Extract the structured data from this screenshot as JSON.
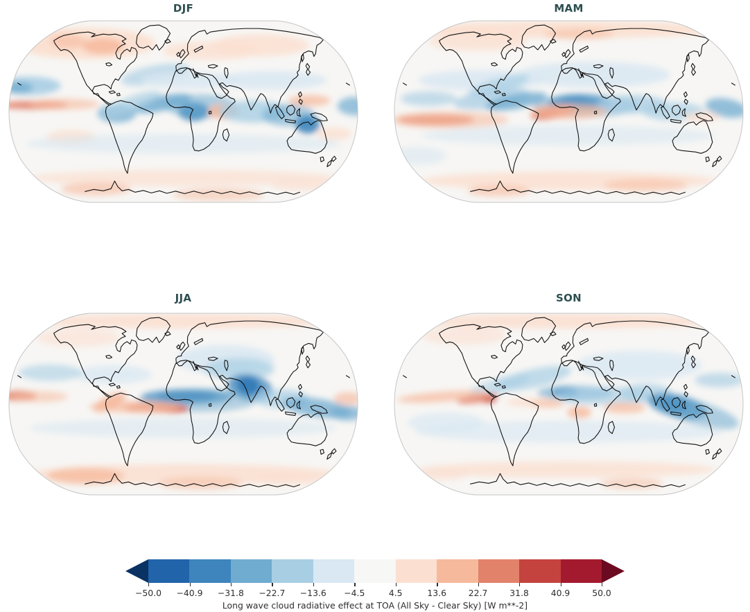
{
  "figure": {
    "panels": [
      {
        "id": "DJF",
        "title": "DJF"
      },
      {
        "id": "MAM",
        "title": "MAM"
      },
      {
        "id": "JJA",
        "title": "JJA"
      },
      {
        "id": "SON",
        "title": "SON"
      }
    ],
    "title_color": "#2d4f51"
  },
  "colorbar": {
    "label": "Long wave cloud radiative effect at TOA (All Sky - Clear Sky) [W m**-2]",
    "tick_labels": [
      "−50.0",
      "−40.9",
      "−31.8",
      "−22.7",
      "−13.6",
      "−4.5",
      "4.5",
      "13.6",
      "22.7",
      "31.8",
      "40.9",
      "50.0"
    ],
    "segment_colors": [
      "#2264aa",
      "#3d85bc",
      "#70abd0",
      "#a8cee4",
      "#d9e8f2",
      "#f7f7f6",
      "#fbe0d1",
      "#f6b99c",
      "#e2826b",
      "#c4433f",
      "#a31a2e"
    ],
    "under_arrow_color": "#0a3263",
    "over_arrow_color": "#6b0a20"
  },
  "chart_data": {
    "type": "heatmap",
    "title": "",
    "variable": "Long wave cloud radiative effect at TOA (All Sky - Clear Sky)",
    "units": "W m**-2",
    "projection": "Robinson world map, one panel per season",
    "panels": [
      "DJF",
      "MAM",
      "JJA",
      "SON"
    ],
    "levels": [
      -50.0,
      -40.9,
      -31.8,
      -22.7,
      -13.6,
      -4.5,
      4.5,
      13.6,
      22.7,
      31.8,
      40.9,
      50.0
    ],
    "colorbar_extend": "both",
    "legend_position": "bottom",
    "style": {
      "map_background": "#f7f6f4",
      "coastline_color": "#111111",
      "outline_color": "#c4c4c4"
    },
    "palette": {
      "b1": "#d9e8f2",
      "b2": "#a8cee4",
      "b3": "#70abd0",
      "b4": "#3d85bc",
      "b5": "#2264aa",
      "r1": "#fbe0d1",
      "r2": "#f6b99c",
      "r3": "#e2826b",
      "r4": "#c4433f"
    },
    "features": {
      "DJF": [
        [
          0.22,
          0.13,
          0.2,
          0.085,
          0,
          "r1",
          0.95
        ],
        [
          0.27,
          0.145,
          0.06,
          0.045,
          0,
          "r2",
          0.85
        ],
        [
          0.17,
          0.12,
          0.05,
          0.04,
          0,
          "r2",
          0.6
        ],
        [
          0.58,
          0.17,
          0.14,
          0.05,
          0,
          "r1",
          0.8
        ],
        [
          0.72,
          0.14,
          0.14,
          0.06,
          0,
          "r1",
          0.85
        ],
        [
          0.06,
          0.36,
          0.09,
          0.05,
          0,
          "b2",
          0.9
        ],
        [
          0.03,
          0.37,
          0.04,
          0.03,
          0,
          "b3",
          0.8
        ],
        [
          0.42,
          0.3,
          0.1,
          0.05,
          -10,
          "b2",
          0.65
        ],
        [
          0.52,
          0.33,
          0.14,
          0.045,
          0,
          "b1",
          0.85
        ],
        [
          0.75,
          0.33,
          0.16,
          0.05,
          0,
          "b1",
          0.85
        ],
        [
          0.07,
          0.465,
          0.1,
          0.022,
          0,
          "r3",
          0.9
        ],
        [
          0.16,
          0.46,
          0.1,
          0.03,
          0,
          "r2",
          0.6
        ],
        [
          0.44,
          0.455,
          0.085,
          0.04,
          -12,
          "b3",
          0.85
        ],
        [
          0.31,
          0.51,
          0.055,
          0.05,
          0,
          "b3",
          0.75
        ],
        [
          0.35,
          0.46,
          0.09,
          0.04,
          -20,
          "b2",
          0.7
        ],
        [
          0.53,
          0.5,
          0.045,
          0.05,
          0,
          "b4",
          0.9
        ],
        [
          0.55,
          0.47,
          0.1,
          0.065,
          0,
          "b3",
          0.55
        ],
        [
          0.615,
          0.5,
          0.045,
          0.04,
          0,
          "r2",
          0.9
        ],
        [
          0.7,
          0.5,
          0.1,
          0.06,
          0,
          "b2",
          0.8
        ],
        [
          0.8,
          0.52,
          0.075,
          0.06,
          0,
          "b3",
          0.6
        ],
        [
          0.855,
          0.57,
          0.035,
          0.05,
          0,
          "b4",
          0.9
        ],
        [
          0.99,
          0.47,
          0.05,
          0.05,
          0,
          "b3",
          0.7
        ],
        [
          0.86,
          0.44,
          0.06,
          0.03,
          0,
          "r2",
          0.75
        ],
        [
          0.93,
          0.62,
          0.05,
          0.035,
          0,
          "r1",
          0.8
        ],
        [
          0.18,
          0.64,
          0.07,
          0.04,
          0,
          "r1",
          0.8
        ],
        [
          0.5,
          0.675,
          0.45,
          0.055,
          0,
          "b1",
          0.6
        ],
        [
          0.5,
          0.86,
          0.44,
          0.045,
          0,
          "r1",
          0.75
        ],
        [
          0.25,
          0.92,
          0.1,
          0.035,
          0,
          "r2",
          0.6
        ],
        [
          0.6,
          0.95,
          0.13,
          0.035,
          0,
          "r2",
          0.5
        ],
        [
          0.85,
          0.9,
          0.1,
          0.03,
          0,
          "r1",
          0.7
        ]
      ],
      "MAM": [
        [
          0.5,
          0.055,
          0.44,
          0.045,
          0,
          "r1",
          0.95
        ],
        [
          0.24,
          0.12,
          0.14,
          0.05,
          0,
          "r1",
          0.8
        ],
        [
          0.53,
          0.08,
          0.1,
          0.03,
          0,
          "r2",
          0.5
        ],
        [
          0.25,
          0.33,
          0.18,
          0.055,
          0,
          "b1",
          0.85
        ],
        [
          0.57,
          0.3,
          0.22,
          0.07,
          0,
          "b1",
          0.85
        ],
        [
          0.3,
          0.36,
          0.09,
          0.04,
          -15,
          "b2",
          0.7
        ],
        [
          0.1,
          0.43,
          0.08,
          0.04,
          0,
          "b2",
          0.65
        ],
        [
          0.28,
          0.43,
          0.11,
          0.05,
          -8,
          "b2",
          0.75
        ],
        [
          0.35,
          0.445,
          0.09,
          0.04,
          -10,
          "b3",
          0.8
        ],
        [
          0.52,
          0.445,
          0.04,
          0.033,
          0,
          "b5",
          0.95
        ],
        [
          0.53,
          0.45,
          0.09,
          0.045,
          0,
          "b4",
          0.85
        ],
        [
          0.55,
          0.47,
          0.15,
          0.06,
          0,
          "b3",
          0.55
        ],
        [
          0.68,
          0.46,
          0.1,
          0.05,
          0,
          "b2",
          0.75
        ],
        [
          0.8,
          0.5,
          0.09,
          0.05,
          0,
          "b2",
          0.7
        ],
        [
          0.95,
          0.48,
          0.06,
          0.05,
          10,
          "b3",
          0.75
        ],
        [
          0.44,
          0.505,
          0.032,
          0.026,
          -12,
          "r4",
          1
        ],
        [
          0.455,
          0.505,
          0.065,
          0.035,
          -10,
          "r3",
          0.85
        ],
        [
          0.5,
          0.5,
          0.11,
          0.04,
          0,
          "r2",
          0.7
        ],
        [
          0.12,
          0.545,
          0.11,
          0.03,
          0,
          "r3",
          0.85
        ],
        [
          0.16,
          0.545,
          0.17,
          0.045,
          0,
          "r2",
          0.55
        ],
        [
          0.88,
          0.53,
          0.05,
          0.028,
          0,
          "r1",
          0.8
        ],
        [
          0.5,
          0.63,
          0.42,
          0.055,
          0,
          "b1",
          0.6
        ],
        [
          0.07,
          0.74,
          0.08,
          0.05,
          0,
          "b1",
          0.6
        ],
        [
          0.5,
          0.875,
          0.42,
          0.05,
          0,
          "r1",
          0.85
        ],
        [
          0.3,
          0.93,
          0.09,
          0.03,
          0,
          "r2",
          0.6
        ],
        [
          0.72,
          0.9,
          0.12,
          0.035,
          0,
          "r2",
          0.5
        ]
      ],
      "JJA": [
        [
          0.5,
          0.05,
          0.44,
          0.04,
          0,
          "r1",
          0.9
        ],
        [
          0.2,
          0.14,
          0.12,
          0.05,
          0,
          "r1",
          0.6
        ],
        [
          0.62,
          0.26,
          0.14,
          0.08,
          0,
          "b1",
          0.85
        ],
        [
          0.66,
          0.31,
          0.1,
          0.06,
          0,
          "b2",
          0.7
        ],
        [
          0.3,
          0.34,
          0.11,
          0.05,
          0,
          "b1",
          0.8
        ],
        [
          0.12,
          0.33,
          0.09,
          0.045,
          0,
          "b2",
          0.6
        ],
        [
          0.685,
          0.4,
          0.032,
          0.05,
          15,
          "b5",
          1
        ],
        [
          0.69,
          0.41,
          0.065,
          0.07,
          10,
          "b4",
          0.75
        ],
        [
          0.51,
          0.455,
          0.085,
          0.026,
          0,
          "b5",
          0.9
        ],
        [
          0.51,
          0.46,
          0.13,
          0.04,
          0,
          "b4",
          0.75
        ],
        [
          0.54,
          0.48,
          0.17,
          0.065,
          0,
          "b3",
          0.5
        ],
        [
          0.78,
          0.47,
          0.08,
          0.05,
          0,
          "b2",
          0.7
        ],
        [
          0.88,
          0.52,
          0.1,
          0.05,
          8,
          "b3",
          0.75
        ],
        [
          0.97,
          0.55,
          0.05,
          0.04,
          0,
          "b3",
          0.7
        ],
        [
          0.47,
          0.525,
          0.045,
          0.022,
          0,
          "r4",
          0.95
        ],
        [
          0.42,
          0.52,
          0.09,
          0.027,
          0,
          "r3",
          0.85
        ],
        [
          0.36,
          0.515,
          0.13,
          0.032,
          0,
          "r2",
          0.7
        ],
        [
          0.29,
          0.49,
          0.05,
          0.035,
          -25,
          "r2",
          0.9
        ],
        [
          0.03,
          0.455,
          0.05,
          0.028,
          0,
          "r3",
          0.85
        ],
        [
          0.09,
          0.46,
          0.08,
          0.03,
          0,
          "r2",
          0.55
        ],
        [
          0.97,
          0.47,
          0.04,
          0.035,
          0,
          "r2",
          0.65
        ],
        [
          0.5,
          0.63,
          0.44,
          0.055,
          0,
          "b1",
          0.6
        ],
        [
          0.5,
          0.88,
          0.44,
          0.055,
          0,
          "r1",
          0.9
        ],
        [
          0.22,
          0.89,
          0.11,
          0.045,
          0,
          "r2",
          0.75
        ],
        [
          0.55,
          0.93,
          0.12,
          0.035,
          0,
          "r2",
          0.5
        ],
        [
          0.8,
          0.91,
          0.1,
          0.03,
          0,
          "r1",
          0.7
        ]
      ],
      "SON": [
        [
          0.5,
          0.05,
          0.44,
          0.04,
          0,
          "r1",
          0.9
        ],
        [
          0.2,
          0.13,
          0.12,
          0.05,
          0,
          "r1",
          0.6
        ],
        [
          0.7,
          0.29,
          0.18,
          0.08,
          0,
          "b1",
          0.8
        ],
        [
          0.4,
          0.36,
          0.11,
          0.05,
          -12,
          "b2",
          0.7
        ],
        [
          0.3,
          0.4,
          0.09,
          0.04,
          -15,
          "b2",
          0.6
        ],
        [
          0.93,
          0.37,
          0.07,
          0.04,
          0,
          "b2",
          0.65
        ],
        [
          0.49,
          0.435,
          0.038,
          0.03,
          0,
          "b4",
          0.9
        ],
        [
          0.52,
          0.44,
          0.11,
          0.04,
          0,
          "b3",
          0.65
        ],
        [
          0.6,
          0.455,
          0.14,
          0.05,
          0,
          "b2",
          0.6
        ],
        [
          0.72,
          0.44,
          0.075,
          0.05,
          0,
          "b2",
          0.7
        ],
        [
          0.8,
          0.5,
          0.038,
          0.045,
          0,
          "b5",
          1
        ],
        [
          0.81,
          0.51,
          0.085,
          0.06,
          12,
          "b4",
          0.8
        ],
        [
          0.86,
          0.545,
          0.13,
          0.065,
          15,
          "b3",
          0.55
        ],
        [
          0.27,
          0.475,
          0.022,
          0.018,
          0,
          "r4",
          1
        ],
        [
          0.24,
          0.47,
          0.06,
          0.022,
          -8,
          "r3",
          0.9
        ],
        [
          0.14,
          0.46,
          0.13,
          0.028,
          -4,
          "r2",
          0.7
        ],
        [
          0.4,
          0.49,
          0.08,
          0.022,
          0,
          "r1",
          0.95
        ],
        [
          0.44,
          0.5,
          0.05,
          0.02,
          0,
          "r2",
          0.6
        ],
        [
          0.53,
          0.545,
          0.035,
          0.032,
          0,
          "r2",
          0.8
        ],
        [
          0.66,
          0.52,
          0.06,
          0.03,
          0,
          "r2",
          0.7
        ],
        [
          0.5,
          0.65,
          0.44,
          0.06,
          0,
          "b1",
          0.65
        ],
        [
          0.15,
          0.6,
          0.11,
          0.055,
          0,
          "b1",
          0.7
        ],
        [
          0.5,
          0.855,
          0.42,
          0.045,
          0,
          "r1",
          0.8
        ],
        [
          0.68,
          0.93,
          0.09,
          0.03,
          0,
          "r2",
          0.5
        ],
        [
          0.12,
          0.88,
          0.09,
          0.035,
          0,
          "r1",
          0.7
        ]
      ]
    }
  }
}
